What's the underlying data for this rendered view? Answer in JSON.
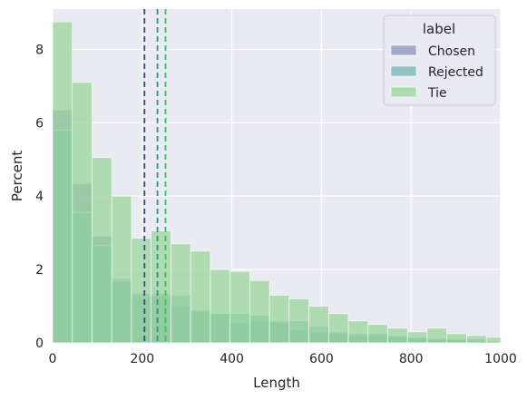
{
  "chart_data": {
    "type": "bar",
    "xlabel": "Length",
    "ylabel": "Percent",
    "xlim": [
      0,
      1000
    ],
    "ylim": [
      0,
      9.1
    ],
    "xticks": [
      0,
      200,
      400,
      600,
      800,
      1000
    ],
    "yticks": [
      0,
      2,
      4,
      6,
      8
    ],
    "grid": true,
    "legend": {
      "title": "label",
      "placement": "top-right"
    },
    "bin_edges": [
      0,
      44,
      88,
      132,
      176,
      220,
      264,
      308,
      352,
      396,
      440,
      484,
      528,
      572,
      616,
      660,
      704,
      748,
      792,
      836,
      880,
      924,
      968,
      1000
    ],
    "series": [
      {
        "name": "Chosen",
        "color": "#8e93b8",
        "values": [
          6.35,
          4.35,
          2.9,
          1.75,
          1.25,
          1.35,
          1.0,
          0.85,
          0.8,
          0.55,
          0.6,
          0.55,
          0.35,
          0.3,
          0.25,
          0.2,
          0.2,
          0.15,
          0.15,
          0.1,
          0.1,
          0.05,
          0.03
        ]
      },
      {
        "name": "Rejected",
        "color": "#6fb7b5",
        "values": [
          5.8,
          3.55,
          2.65,
          1.7,
          1.35,
          1.3,
          1.3,
          0.9,
          0.8,
          0.8,
          0.75,
          0.6,
          0.6,
          0.45,
          0.3,
          0.25,
          0.25,
          0.2,
          0.15,
          0.12,
          0.1,
          0.1,
          0.05
        ]
      },
      {
        "name": "Tie",
        "color": "#9ad59a",
        "values": [
          8.75,
          7.1,
          5.05,
          4.0,
          2.85,
          3.05,
          2.7,
          2.5,
          2.0,
          1.95,
          1.7,
          1.3,
          1.2,
          1.0,
          0.8,
          0.6,
          0.5,
          0.4,
          0.3,
          0.4,
          0.25,
          0.2,
          0.15
        ]
      }
    ],
    "mean_lines": [
      {
        "series": "Chosen",
        "x": 205,
        "color": "#3a4a8a"
      },
      {
        "series": "Rejected",
        "x": 234,
        "color": "#1f9a7a"
      },
      {
        "series": "Tie",
        "x": 252,
        "color": "#3cbf62"
      }
    ]
  }
}
